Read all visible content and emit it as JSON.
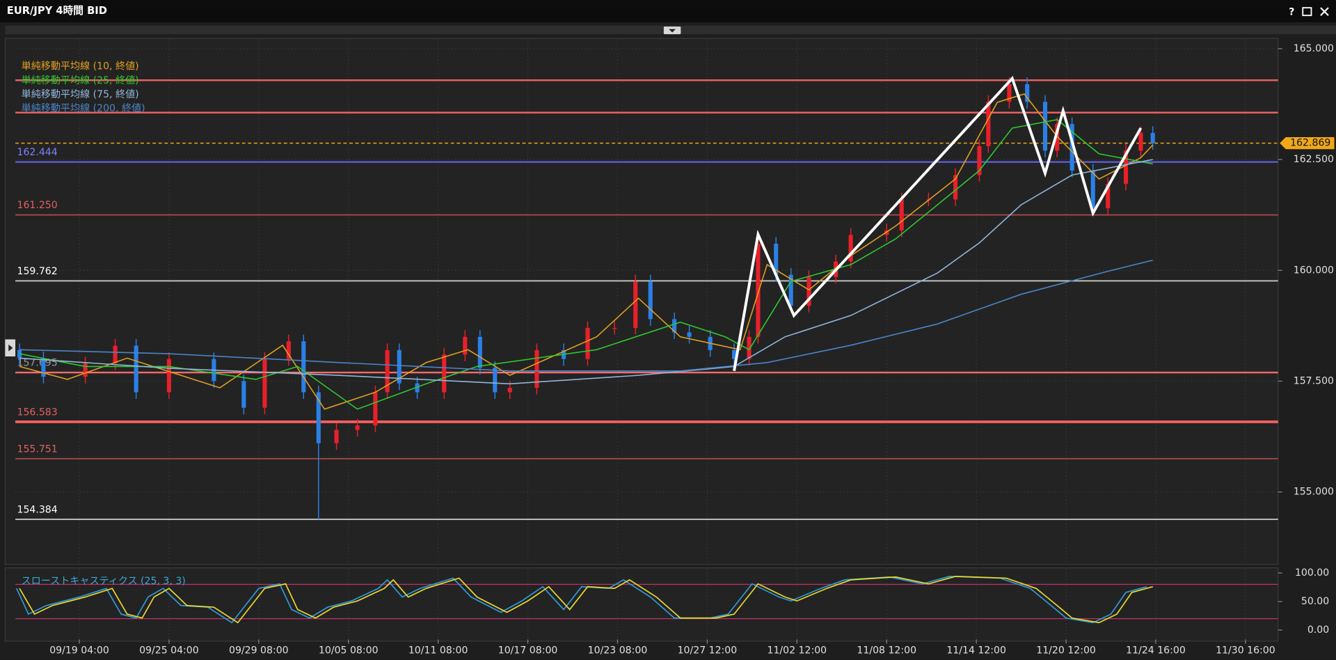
{
  "window": {
    "title": "EUR/JPY 4時間 BID",
    "help": "?"
  },
  "chart_data": [
    {
      "type": "candlestick",
      "x": [
        -20,
        -12,
        2,
        12,
        19,
        30,
        45,
        55,
        62,
        70,
        75,
        80,
        86,
        93,
        99,
        103,
        107,
        113,
        122,
        129,
        134,
        139,
        144,
        153,
        162,
        170,
        179,
        186,
        191,
        199,
        204,
        211,
        219,
        224,
        227,
        233,
        238,
        244,
        253,
        258,
        270,
        275,
        284,
        293,
        301,
        304,
        311,
        317,
        323,
        327,
        332,
        339,
        344,
        350,
        355,
        359
      ],
      "open": [
        158.2,
        158.02,
        157.6,
        157.9,
        158.3,
        157.25,
        158.0,
        157.5,
        156.9,
        158.0,
        158.4,
        157.25,
        156.1,
        156.4,
        156.5,
        157.25,
        158.2,
        157.45,
        157.25,
        158.1,
        158.5,
        157.8,
        157.25,
        157.35,
        158.2,
        158.0,
        158.7,
        158.7,
        159.75,
        158.9,
        158.6,
        158.5,
        158.2,
        158.0,
        158.5,
        160.6,
        159.9,
        159.2,
        159.85,
        160.2,
        160.8,
        160.9,
        161.6,
        161.6,
        162.15,
        162.8,
        163.8,
        164.2,
        163.8,
        162.7,
        163.3,
        162.25,
        161.4,
        161.95,
        162.7,
        163.1
      ],
      "high": [
        158.35,
        158.17,
        158.05,
        158.45,
        158.45,
        158.15,
        158.15,
        157.65,
        158.15,
        158.55,
        158.55,
        157.4,
        156.55,
        156.65,
        157.4,
        158.35,
        158.35,
        157.6,
        158.25,
        158.65,
        158.65,
        157.95,
        157.5,
        158.35,
        158.35,
        158.85,
        158.85,
        159.9,
        159.9,
        159.05,
        158.75,
        158.65,
        158.35,
        158.65,
        160.75,
        160.75,
        160.05,
        160.0,
        160.35,
        160.95,
        161.05,
        161.75,
        161.75,
        162.3,
        162.95,
        163.95,
        164.35,
        164.35,
        163.95,
        163.45,
        163.45,
        162.4,
        162.1,
        162.85,
        163.25,
        163.25
      ],
      "low": [
        157.87,
        157.45,
        157.45,
        157.75,
        157.1,
        157.1,
        157.35,
        156.75,
        156.75,
        157.85,
        157.1,
        154.384,
        155.95,
        156.25,
        156.35,
        157.1,
        157.3,
        157.1,
        157.1,
        157.95,
        157.65,
        157.1,
        157.1,
        157.2,
        157.85,
        157.85,
        158.55,
        158.55,
        158.75,
        158.45,
        158.35,
        158.05,
        157.85,
        157.85,
        158.35,
        159.75,
        159.05,
        159.05,
        159.7,
        160.05,
        160.65,
        160.75,
        161.45,
        161.45,
        162.0,
        162.65,
        163.65,
        163.65,
        162.55,
        162.55,
        162.1,
        161.25,
        161.25,
        161.8,
        162.55,
        162.72
      ],
      "close": [
        158.02,
        157.6,
        157.9,
        158.3,
        157.25,
        158.0,
        157.5,
        156.9,
        158.0,
        158.4,
        157.25,
        156.1,
        156.4,
        156.5,
        157.25,
        158.2,
        157.45,
        157.25,
        158.1,
        158.5,
        157.8,
        157.25,
        157.35,
        158.2,
        158.0,
        158.7,
        158.7,
        159.75,
        158.9,
        158.6,
        158.5,
        158.2,
        158.0,
        158.5,
        160.6,
        159.9,
        159.2,
        159.85,
        160.2,
        160.8,
        160.9,
        161.6,
        161.6,
        162.15,
        162.8,
        163.8,
        164.2,
        163.8,
        162.7,
        163.3,
        162.25,
        161.4,
        161.95,
        162.7,
        163.1,
        162.869
      ],
      "up_color": "#e8202a",
      "down_color": "#2a80e6",
      "last_price_color": "#f0a818",
      "xlim": [
        -21.4,
        400.9
      ],
      "ylim": [
        153.404,
        165.231
      ],
      "grid": true,
      "xticks": [
        {
          "value": 0,
          "label": "09/19 04:00"
        },
        {
          "value": 30,
          "label": "09/25 04:00"
        },
        {
          "value": 60,
          "label": "09/29 08:00"
        },
        {
          "value": 90,
          "label": "10/05 08:00"
        },
        {
          "value": 120,
          "label": "10/11 08:00"
        },
        {
          "value": 150,
          "label": "10/17 08:00"
        },
        {
          "value": 180,
          "label": "10/23 08:00"
        },
        {
          "value": 210,
          "label": "10/27 12:00"
        },
        {
          "value": 240,
          "label": "11/02 12:00"
        },
        {
          "value": 270,
          "label": "11/08 12:00"
        },
        {
          "value": 300,
          "label": "11/14 12:00"
        },
        {
          "value": 330,
          "label": "11/20 12:00"
        },
        {
          "value": 360,
          "label": "11/24 16:00"
        },
        {
          "value": 390,
          "label": "11/30 16:00"
        }
      ],
      "yticks": [
        {
          "value": 155,
          "label": "155.000"
        },
        {
          "value": 157.5,
          "label": "157.500"
        },
        {
          "value": 160,
          "label": "160.000"
        },
        {
          "value": 162.5,
          "label": "162.500"
        },
        {
          "value": 165,
          "label": "165.000"
        }
      ],
      "series": [
        {
          "name": "単純移動平均線 (10, 終値)",
          "color": "#e0a020",
          "x": [
            -20,
            -4,
            16,
            47,
            68,
            82,
            99,
            116,
            130,
            144,
            173,
            187,
            201,
            221,
            230,
            244,
            258,
            273,
            293,
            307,
            316,
            327,
            341,
            355,
            359
          ],
          "values": [
            157.83,
            157.54,
            158.02,
            157.35,
            158.31,
            156.87,
            157.25,
            157.92,
            158.21,
            157.63,
            158.5,
            159.37,
            158.5,
            158.21,
            160.13,
            159.56,
            160.33,
            161.0,
            162.06,
            163.79,
            163.98,
            163.02,
            162.06,
            162.54,
            162.83
          ]
        },
        {
          "name": "単純移動平均線 (25, 終値)",
          "color": "#2ec82e",
          "x": [
            -20,
            2,
            30,
            59,
            73,
            93,
            116,
            133,
            173,
            201,
            216,
            224,
            238,
            258,
            273,
            287,
            301,
            312,
            327,
            341,
            359
          ],
          "values": [
            158.12,
            157.83,
            157.83,
            157.54,
            157.83,
            156.87,
            157.44,
            157.83,
            158.21,
            158.83,
            158.5,
            158.21,
            159.75,
            160.13,
            160.71,
            161.48,
            162.25,
            163.21,
            163.4,
            162.63,
            162.4
          ]
        },
        {
          "name": "単純移動平均線 (75, 終値)",
          "color": "#8fb6dc",
          "x": [
            -20,
            30,
            87,
            144,
            187,
            219,
            236,
            258,
            287,
            301,
            315,
            332,
            359
          ],
          "values": [
            158.02,
            157.79,
            157.63,
            157.44,
            157.63,
            157.83,
            158.5,
            158.98,
            159.94,
            160.62,
            161.48,
            162.15,
            162.5
          ]
        },
        {
          "name": "単純移動平均線 (200, 終値)",
          "color": "#4a86c8",
          "x": [
            -20,
            30,
            87,
            144,
            201,
            230,
            258,
            287,
            315,
            344,
            359
          ],
          "values": [
            158.21,
            158.12,
            157.92,
            157.73,
            157.73,
            157.92,
            158.31,
            158.79,
            159.46,
            159.98,
            160.23
          ]
        }
      ],
      "levels": [
        {
          "value": 164.288,
          "color": "#e86060",
          "width": 2
        },
        {
          "value": 163.558,
          "color": "#e86060",
          "width": 2
        },
        {
          "value": 162.444,
          "color": "#5c5cd8",
          "text_color": "#8080ff",
          "width": 2
        },
        {
          "value": {
            "value": 161.25,
            "label": "161.250"
          },
          "color": "#a84848",
          "text_color": "#e06060",
          "width": 1.5
        },
        {
          "value": 159.762,
          "color": "#c8c8c8",
          "text_color": "#ffffff",
          "width": 1.5
        },
        {
          "value": 157.695,
          "color": "#ff6b6b",
          "text_color": "#9a9a9a",
          "width": 2
        },
        {
          "value": 156.583,
          "color": "#ff6060",
          "text_color": "#e06060",
          "width": 3
        },
        {
          "value": 155.751,
          "color": "#a04848",
          "text_color": "#e06060",
          "width": 1.5
        },
        {
          "value": 154.384,
          "color": "#d0d0d0",
          "text_color": "#ffffff",
          "width": 1.5
        }
      ],
      "annotation": {
        "color": "#ffffff",
        "x": [
          219,
          227,
          239,
          312,
          323,
          329,
          339,
          355
        ],
        "values": [
          157.73,
          160.81,
          158.98,
          164.33,
          162.19,
          163.6,
          161.29,
          163.21
        ]
      }
    },
    {
      "type": "line",
      "title": "スローストキャスティクス (25, 3, 3)",
      "title_color": "#3aa8d8",
      "ylim": [
        -16.4,
        107.5
      ],
      "yticks": [
        {
          "value": 0,
          "label": "0.00"
        },
        {
          "value": 50,
          "label": "50.00"
        },
        {
          "value": 100,
          "label": "100.00"
        }
      ],
      "levels": [
        80,
        20
      ],
      "level_color": "#c0306a",
      "series": [
        {
          "color": "#2e9ad8",
          "x": [
            -21,
            -17,
            -11,
            0,
            9,
            14,
            19,
            23,
            28,
            34,
            43,
            51,
            60,
            67,
            71,
            77,
            83,
            91,
            100,
            103,
            108,
            114,
            125,
            131,
            141,
            148,
            155,
            162,
            168,
            177,
            182,
            191,
            199,
            211,
            217,
            225,
            234,
            238,
            248,
            256,
            271,
            282,
            291,
            308,
            318,
            325,
            330,
            339,
            345,
            350,
            357
          ],
          "values": [
            73,
            28,
            43,
            58,
            73,
            28,
            21,
            58,
            73,
            43,
            40,
            13,
            73,
            81,
            36,
            21,
            40,
            51,
            73,
            88,
            58,
            73,
            91,
            58,
            31,
            51,
            76,
            36,
            76,
            73,
            88,
            58,
            21,
            21,
            28,
            81,
            58,
            51,
            73,
            88,
            93,
            81,
            94,
            91,
            73,
            43,
            21,
            13,
            28,
            66,
            76
          ]
        },
        {
          "color": "#e8d830",
          "x": [
            -20,
            -15,
            -9,
            2,
            11,
            16,
            21,
            25,
            30,
            36,
            45,
            53,
            62,
            69,
            73,
            79,
            85,
            93,
            102,
            105,
            110,
            116,
            127,
            133,
            143,
            150,
            157,
            164,
            170,
            179,
            184,
            193,
            201,
            213,
            219,
            227,
            236,
            240,
            250,
            258,
            273,
            284,
            293,
            310,
            320,
            327,
            332,
            341,
            347,
            352,
            359
          ],
          "values": [
            73,
            28,
            43,
            58,
            73,
            28,
            21,
            58,
            73,
            43,
            40,
            13,
            73,
            81,
            36,
            21,
            40,
            51,
            73,
            88,
            58,
            73,
            91,
            58,
            31,
            51,
            76,
            36,
            76,
            73,
            88,
            58,
            21,
            21,
            28,
            81,
            58,
            51,
            73,
            88,
            93,
            81,
            94,
            91,
            73,
            43,
            21,
            13,
            28,
            66,
            76
          ]
        }
      ]
    }
  ]
}
